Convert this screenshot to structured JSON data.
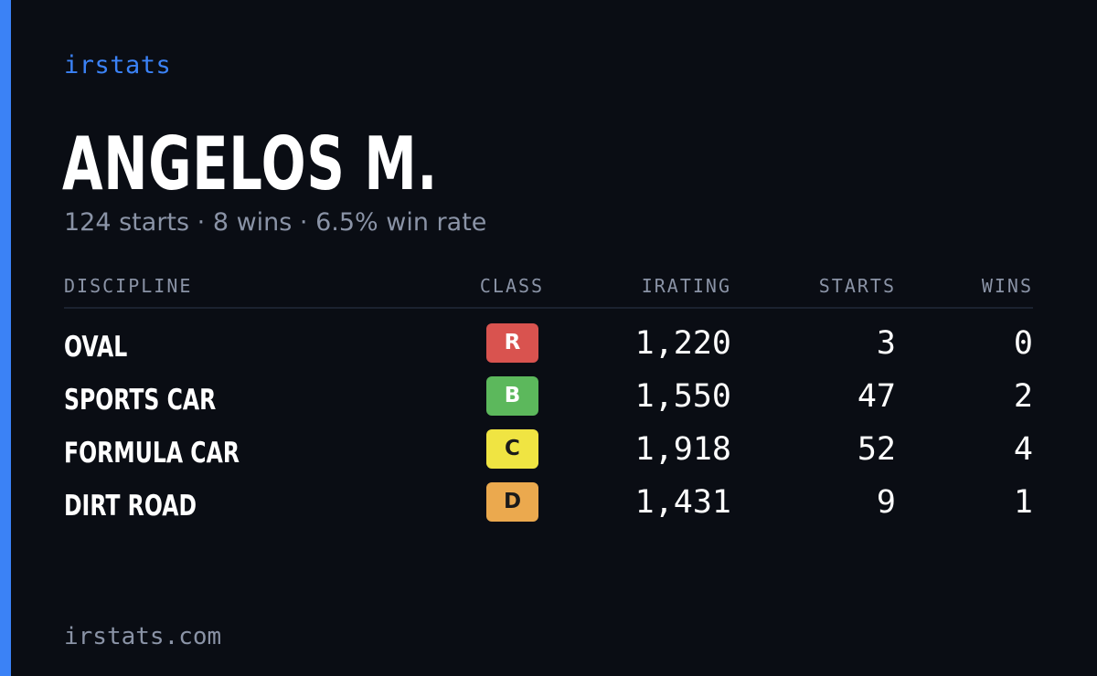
{
  "colors": {
    "background": "#0a0d14",
    "accent": "#3b82f6",
    "muted": "#8a93a6",
    "text": "#ffffff",
    "class_R": "#d9534f",
    "class_B": "#5cb85c",
    "class_C": "#f0e442",
    "class_D": "#eba94e"
  },
  "brand": "irstats",
  "player": {
    "name": "ANGELOS M.",
    "summary": "124 starts · 8 wins · 6.5% win rate"
  },
  "table": {
    "headers": {
      "discipline": "DISCIPLINE",
      "class": "CLASS",
      "irating": "IRATING",
      "starts": "STARTS",
      "wins": "WINS"
    },
    "rows": [
      {
        "discipline": "OVAL",
        "class": "R",
        "irating": "1,220",
        "starts": "3",
        "wins": "0"
      },
      {
        "discipline": "SPORTS CAR",
        "class": "B",
        "irating": "1,550",
        "starts": "47",
        "wins": "2"
      },
      {
        "discipline": "FORMULA CAR",
        "class": "C",
        "irating": "1,918",
        "starts": "52",
        "wins": "4"
      },
      {
        "discipline": "DIRT ROAD",
        "class": "D",
        "irating": "1,431",
        "starts": "9",
        "wins": "1"
      }
    ]
  },
  "footer": "irstats.com"
}
